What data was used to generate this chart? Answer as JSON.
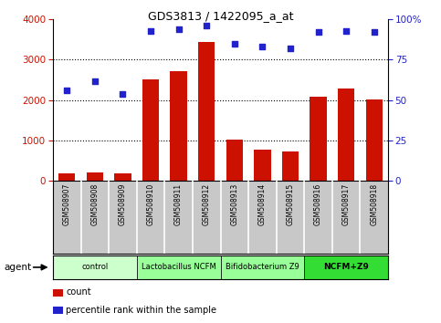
{
  "title": "GDS3813 / 1422095_a_at",
  "samples": [
    "GSM508907",
    "GSM508908",
    "GSM508909",
    "GSM508910",
    "GSM508911",
    "GSM508912",
    "GSM508913",
    "GSM508914",
    "GSM508915",
    "GSM508916",
    "GSM508917",
    "GSM508918"
  ],
  "counts": [
    175,
    210,
    175,
    2520,
    2720,
    3440,
    1020,
    780,
    730,
    2080,
    2280,
    2020
  ],
  "percentile": [
    56,
    62,
    54,
    93,
    94,
    96,
    85,
    83,
    82,
    92,
    93,
    92
  ],
  "ylim_left": [
    0,
    4000
  ],
  "ylim_right": [
    0,
    100
  ],
  "yticks_left": [
    0,
    1000,
    2000,
    3000,
    4000
  ],
  "yticks_right": [
    0,
    25,
    50,
    75,
    100
  ],
  "bar_color": "#cc1100",
  "dot_color": "#2222cc",
  "group_labels": [
    "control",
    "Lactobacillus NCFM",
    "Bifidobacterium Z9",
    "NCFM+Z9"
  ],
  "group_starts": [
    0,
    3,
    6,
    9
  ],
  "group_ends": [
    3,
    6,
    9,
    12
  ],
  "group_colors": [
    "#ccffcc",
    "#99ff99",
    "#99ff99",
    "#33dd33"
  ],
  "group_bold": [
    false,
    false,
    false,
    true
  ],
  "legend_count_label": "count",
  "legend_pct_label": "percentile rank within the sample",
  "agent_label": "agent",
  "bg_color": "#ffffff",
  "tick_area_color": "#c8c8c8"
}
